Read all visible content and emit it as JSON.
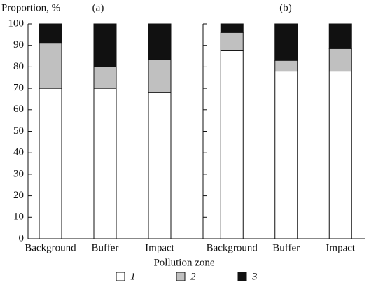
{
  "chart_data": [
    {
      "type": "stacked-bar",
      "title": "(a)",
      "y_label": "Proportion, %",
      "x_label": "Pollution zone",
      "categories": [
        "Background",
        "Buffer",
        "Impact"
      ],
      "series": [
        {
          "name": "1",
          "color": "#ffffff",
          "values": [
            70,
            70,
            68
          ]
        },
        {
          "name": "2",
          "color": "#c0c0c0",
          "values": [
            21,
            10,
            15.5
          ]
        },
        {
          "name": "3",
          "color": "#111111",
          "values": [
            9,
            20,
            16.5
          ]
        }
      ],
      "ylim": [
        0,
        100
      ],
      "yticks": [
        0,
        10,
        20,
        30,
        40,
        50,
        60,
        70,
        80,
        90,
        100
      ]
    },
    {
      "type": "stacked-bar",
      "title": "(b)",
      "categories": [
        "Background",
        "Buffer",
        "Impact"
      ],
      "series": [
        {
          "color": "#ffffff",
          "values": [
            87.5,
            78,
            78
          ]
        },
        {
          "color": "#c0c0c0",
          "values": [
            8.5,
            5,
            10.5
          ]
        },
        {
          "color": "#111111",
          "values": [
            4,
            17,
            11.5
          ]
        }
      ],
      "ylim": [
        0,
        100
      ],
      "yticks": [
        0,
        10,
        20,
        30,
        40,
        50,
        60,
        70,
        80,
        90,
        100
      ]
    }
  ]
}
